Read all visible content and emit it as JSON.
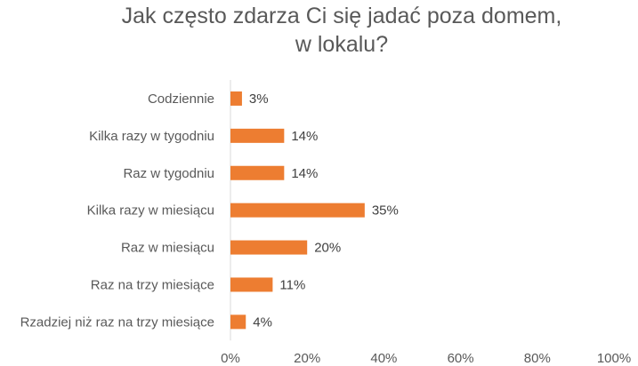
{
  "chart_data": {
    "type": "bar",
    "orientation": "horizontal",
    "title_lines": [
      "Jak często zdarza Ci się jadać poza domem,",
      "w lokalu?"
    ],
    "categories": [
      "Codziennie",
      "Kilka razy w tygodniu",
      "Raz w tygodniu",
      "Kilka razy w miesiącu",
      "Raz w miesiącu",
      "Raz na trzy miesiące",
      "Rzadziej niż raz na trzy miesiące"
    ],
    "values": [
      3,
      14,
      14,
      35,
      20,
      11,
      4
    ],
    "value_labels": [
      "3%",
      "14%",
      "14%",
      "35%",
      "20%",
      "11%",
      "4%"
    ],
    "xlim": [
      0,
      100
    ],
    "xticks": [
      0,
      20,
      40,
      60,
      80,
      100
    ],
    "xtick_labels": [
      "0%",
      "20%",
      "40%",
      "60%",
      "80%",
      "100%"
    ],
    "grid": false,
    "bar_color": "#ED7D31",
    "axis_color": "#D9D9D9"
  }
}
